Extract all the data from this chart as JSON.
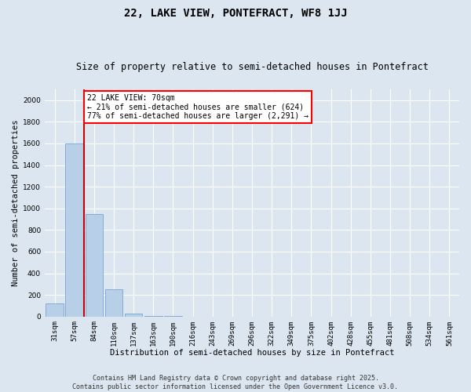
{
  "title": "22, LAKE VIEW, PONTEFRACT, WF8 1JJ",
  "subtitle": "Size of property relative to semi-detached houses in Pontefract",
  "xlabel": "Distribution of semi-detached houses by size in Pontefract",
  "ylabel": "Number of semi-detached properties",
  "categories": [
    "31sqm",
    "57sqm",
    "84sqm",
    "110sqm",
    "137sqm",
    "163sqm",
    "190sqm",
    "216sqm",
    "243sqm",
    "269sqm",
    "296sqm",
    "322sqm",
    "349sqm",
    "375sqm",
    "402sqm",
    "428sqm",
    "455sqm",
    "481sqm",
    "508sqm",
    "534sqm",
    "561sqm"
  ],
  "values": [
    120,
    1600,
    950,
    255,
    30,
    8,
    2,
    0,
    0,
    0,
    0,
    0,
    0,
    0,
    0,
    0,
    0,
    0,
    0,
    0,
    0
  ],
  "bar_color": "#b8cfe8",
  "bar_edge_color": "#6699cc",
  "background_color": "#dce6f0",
  "grid_color": "#ffffff",
  "annotation_text": "22 LAKE VIEW: 70sqm\n← 21% of semi-detached houses are smaller (624)\n77% of semi-detached houses are larger (2,291) →",
  "vline_color": "#cc0000",
  "ylim": [
    0,
    2100
  ],
  "yticks": [
    0,
    200,
    400,
    600,
    800,
    1000,
    1200,
    1400,
    1600,
    1800,
    2000
  ],
  "footer_line1": "Contains HM Land Registry data © Crown copyright and database right 2025.",
  "footer_line2": "Contains public sector information licensed under the Open Government Licence v3.0.",
  "title_fontsize": 10,
  "subtitle_fontsize": 8.5,
  "axis_label_fontsize": 7.5,
  "tick_fontsize": 6.5,
  "annotation_fontsize": 7,
  "footer_fontsize": 6
}
